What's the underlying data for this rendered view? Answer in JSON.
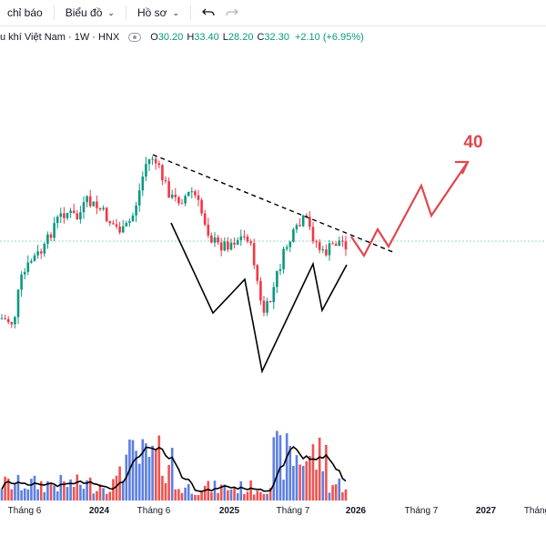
{
  "toolbar": {
    "indicators_label": "chỉ báo",
    "chart_label": "Biểu đồ",
    "profile_label": "Hồ sơ",
    "undo_icon": "undo-icon",
    "redo_icon": "redo-icon"
  },
  "legend": {
    "symbol": "u khí Việt Nam · 1W · HNX",
    "open_key": "O",
    "open": "30.20",
    "high_key": "H",
    "high": "33.40",
    "low_key": "L",
    "low": "28.20",
    "close_key": "C",
    "close": "32.30",
    "change": "+2.10 (+6.95%)"
  },
  "colors": {
    "up": "#089981",
    "down": "#f23645",
    "vol_up": "#5b7fe0",
    "vol_down": "#ef5350",
    "projection": "#e0474c",
    "pattern": "#000000"
  },
  "chart_data": {
    "type": "candlestick",
    "interval": "1W",
    "projection_target_label": "40",
    "x_tick_labels": [
      "Tháng 6",
      "2024",
      "Tháng 6",
      "2025",
      "Tháng 7",
      "2026",
      "Tháng 7",
      "2027",
      "Tháng"
    ],
    "bold_ticks": [
      "2024",
      "2025",
      "2026",
      "2027"
    ],
    "last_candle": {
      "open": 30.2,
      "high": 33.4,
      "low": 28.2,
      "close": 32.3
    }
  }
}
